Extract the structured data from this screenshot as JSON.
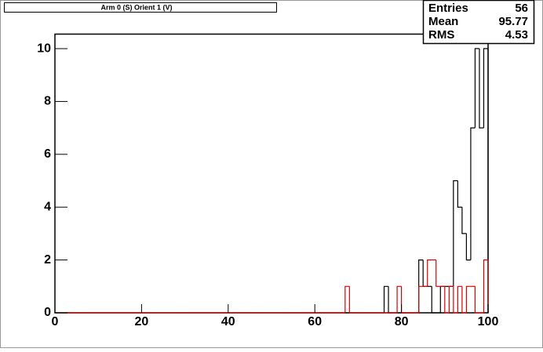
{
  "chart_data": {
    "type": "histogram",
    "title": "Arm 0 (S) Orient 1 (V)",
    "bins": [
      0,
      1,
      2,
      3,
      4,
      5,
      6,
      7,
      8,
      9,
      10,
      11,
      12,
      13,
      14,
      15,
      16,
      17,
      18,
      19,
      20,
      21,
      22,
      23,
      24,
      25,
      26,
      27,
      28,
      29,
      30,
      31,
      32,
      33,
      34,
      35,
      36,
      37,
      38,
      39,
      40,
      41,
      42,
      43,
      44,
      45,
      46,
      47,
      48,
      49,
      50,
      51,
      52,
      53,
      54,
      55,
      56,
      57,
      58,
      59,
      60,
      61,
      62,
      63,
      64,
      65,
      66,
      67,
      68,
      69,
      70,
      71,
      72,
      73,
      74,
      75,
      76,
      77,
      78,
      79,
      80,
      81,
      82,
      83,
      84,
      85,
      86,
      87,
      88,
      89,
      90,
      91,
      92,
      93,
      94,
      95,
      96,
      97,
      98,
      99,
      100
    ],
    "series": [
      {
        "color": "#000000",
        "values": [
          0,
          0,
          0,
          0,
          0,
          0,
          0,
          0,
          0,
          0,
          0,
          0,
          0,
          0,
          0,
          0,
          0,
          0,
          0,
          0,
          0,
          0,
          0,
          0,
          0,
          0,
          0,
          0,
          0,
          0,
          0,
          0,
          0,
          0,
          0,
          0,
          0,
          0,
          0,
          0,
          0,
          0,
          0,
          0,
          0,
          0,
          0,
          0,
          0,
          0,
          0,
          0,
          0,
          0,
          0,
          0,
          0,
          0,
          0,
          0,
          0,
          0,
          0,
          0,
          0,
          0,
          0,
          0,
          0,
          0,
          0,
          0,
          0,
          0,
          0,
          0,
          1,
          0,
          0,
          0,
          0,
          0,
          0,
          0,
          2,
          1,
          1,
          0,
          0,
          1,
          1,
          1,
          5,
          4,
          3,
          2,
          7,
          10,
          7,
          10
        ]
      },
      {
        "color": "#dd0000",
        "values": [
          0,
          0,
          0,
          0,
          0,
          0,
          0,
          0,
          0,
          0,
          0,
          0,
          0,
          0,
          0,
          0,
          0,
          0,
          0,
          0,
          0,
          0,
          0,
          0,
          0,
          0,
          0,
          0,
          0,
          0,
          0,
          0,
          0,
          0,
          0,
          0,
          0,
          0,
          0,
          0,
          0,
          0,
          0,
          0,
          0,
          0,
          0,
          0,
          0,
          0,
          0,
          0,
          0,
          0,
          0,
          0,
          0,
          0,
          0,
          0,
          0,
          0,
          0,
          0,
          0,
          0,
          0,
          1,
          0,
          0,
          0,
          0,
          0,
          0,
          0,
          0,
          0,
          0,
          0,
          1,
          0,
          0,
          0,
          0,
          1,
          1,
          2,
          2,
          1,
          1,
          0,
          1,
          0,
          1,
          0,
          1,
          1,
          0,
          0,
          2
        ]
      }
    ],
    "xlim": [
      0,
      100
    ],
    "xticks": [
      0,
      20,
      40,
      60,
      80,
      100
    ],
    "ylim": [
      0,
      10.55
    ],
    "yticks": [
      0,
      2,
      4,
      6,
      8,
      10
    ],
    "stats": {
      "labels": [
        "Entries",
        "Mean",
        "RMS"
      ],
      "values": [
        56,
        95.77,
        4.53
      ]
    }
  }
}
